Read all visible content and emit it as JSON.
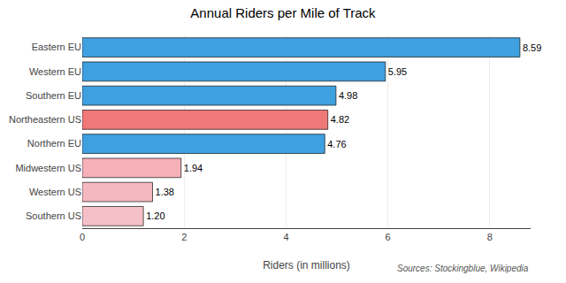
{
  "chart_data": {
    "type": "bar",
    "orientation": "horizontal",
    "title": "Annual Riders per Mile of Track",
    "xlabel": "Riders (in millions)",
    "annotations": [
      "Sources: Stockingblue, Wikipedia"
    ],
    "categories": [
      "Eastern EU",
      "Western EU",
      "Southern EU",
      "Northeastern US",
      "Northern EU",
      "Midwestern US",
      "Western US",
      "Southern US"
    ],
    "series": [
      {
        "name": "EU",
        "color": "#1a80d0",
        "values": [
          8.59,
          5.95,
          4.98,
          null,
          4.76,
          null,
          null,
          null
        ],
        "value_labels": [
          "8.59",
          "5.95",
          "4.98",
          null,
          "4.76",
          null,
          null,
          null
        ],
        "colors": [
          "#3fa0e0",
          "#3fa0e0",
          "#3fa0e0",
          null,
          "#3fa0e0",
          null,
          null,
          null
        ]
      },
      {
        "name": "US",
        "color": "#f06060",
        "values": [
          null,
          null,
          null,
          4.82,
          null,
          1.94,
          1.38,
          1.2
        ],
        "value_labels": [
          null,
          null,
          null,
          "4.82",
          null,
          "1.94",
          "1.38",
          "1.20"
        ],
        "colors": [
          null,
          null,
          null,
          "#f07878",
          null,
          "#f5b0b8",
          "#f5b8c0",
          "#f5c0c8"
        ]
      }
    ],
    "xlim": [
      0,
      8.8
    ],
    "xticks": [
      0,
      2,
      4,
      6,
      8
    ],
    "grid": true,
    "data_labels": true,
    "legend": "right"
  }
}
